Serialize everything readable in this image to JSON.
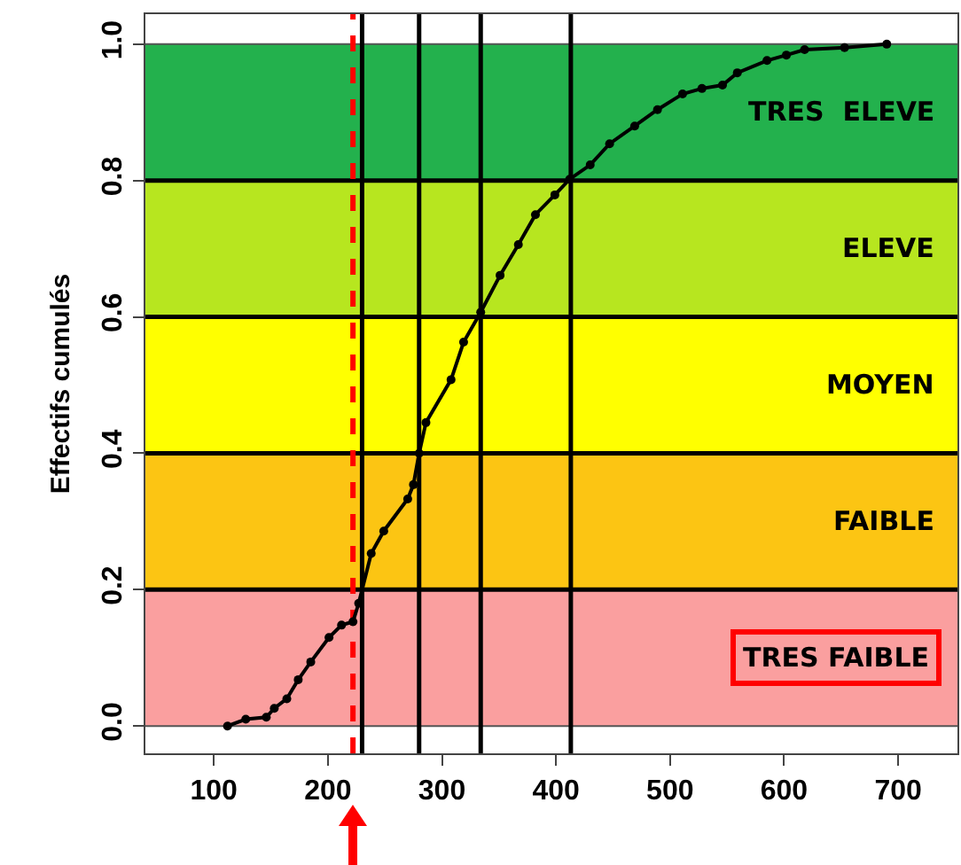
{
  "chart_data": {
    "type": "line",
    "ylabel": "Effectifs cumulés",
    "x": [
      112,
      128,
      146,
      153,
      164,
      174,
      185,
      201,
      212,
      222,
      227,
      238,
      249,
      270,
      275,
      280,
      286,
      308,
      319,
      334,
      351,
      367,
      382,
      399,
      412,
      430,
      447,
      469,
      489,
      511,
      528,
      546,
      559,
      585,
      602,
      618,
      653,
      690
    ],
    "series": [
      {
        "color": "#000000",
        "values": [
          0,
          0.01,
          0.013,
          0.026,
          0.04,
          0.068,
          0.094,
          0.13,
          0.148,
          0.153,
          0.18,
          0.253,
          0.286,
          0.333,
          0.354,
          0.4,
          0.445,
          0.508,
          0.563,
          0.607,
          0.661,
          0.706,
          0.75,
          0.779,
          0.802,
          0.823,
          0.854,
          0.88,
          0.904,
          0.927,
          0.935,
          0.94,
          0.958,
          0.976,
          0.984,
          0.992,
          0.995,
          1.0
        ]
      }
    ],
    "marker": "circle",
    "line_style": "solid",
    "xlim": [
      40,
      752
    ],
    "xticks": [
      100,
      200,
      300,
      400,
      500,
      600,
      700
    ],
    "ylim": [
      -0.04,
      1.044
    ],
    "yticks": [
      {
        "value": 0,
        "label": "0.0"
      },
      {
        "value": 0.2,
        "label": "0.2"
      },
      {
        "value": 0.4,
        "label": "0.4"
      },
      {
        "value": 0.6,
        "label": "0.6"
      },
      {
        "value": 0.8,
        "label": "0.8"
      },
      {
        "value": 1,
        "label": "1.0"
      }
    ],
    "grid": false,
    "bands": [
      {
        "axis": "y",
        "from": 0,
        "to": 0.2,
        "label": "TRES FAIBLE",
        "color": "#fa9f9f"
      },
      {
        "axis": "y",
        "from": 0.2,
        "to": 0.4,
        "label": "FAIBLE",
        "color": "#fcc513"
      },
      {
        "axis": "y",
        "from": 0.4,
        "to": 0.6,
        "label": "MOYEN",
        "color": "#ffff00"
      },
      {
        "axis": "y",
        "from": 0.6,
        "to": 0.8,
        "label": "ELEVE",
        "color": "#b7e61f"
      },
      {
        "axis": "y",
        "from": 0.8,
        "to": 1,
        "label": "TRES  ELEVE",
        "color": "#23b14d"
      }
    ],
    "ref_lines": [
      {
        "axis": "y",
        "value": 0,
        "color": "#555555"
      },
      {
        "axis": "y",
        "value": 0.2,
        "color": "#000000"
      },
      {
        "axis": "y",
        "value": 0.4,
        "color": "#000000"
      },
      {
        "axis": "y",
        "value": 0.6,
        "color": "#000000"
      },
      {
        "axis": "y",
        "value": 0.8,
        "color": "#000000"
      },
      {
        "axis": "y",
        "value": 1,
        "color": "#555555"
      },
      {
        "axis": "x",
        "value": 230,
        "color": "#000000"
      },
      {
        "axis": "x",
        "value": 280,
        "color": "#000000"
      },
      {
        "axis": "x",
        "value": 334,
        "color": "#000000"
      },
      {
        "axis": "x",
        "value": 413,
        "color": "#000000"
      },
      {
        "axis": "x",
        "value": 222,
        "color": "#ff0000",
        "line_style": "dashed"
      }
    ]
  }
}
